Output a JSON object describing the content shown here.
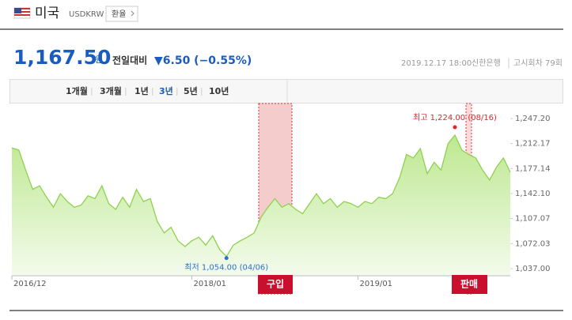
{
  "header": {
    "country": "미국",
    "code": "USDKRW",
    "button": "환율"
  },
  "quote": {
    "price": "1,167.50",
    "unit": "원",
    "change_label": "전일대비",
    "change": "▼6.50 (−0.55%)",
    "datetime": "2019.12.17 18:00",
    "bank": "신한은행",
    "round": "고시회차 79회"
  },
  "tabs": [
    "1개월",
    "3개월",
    "1년",
    "3년",
    "5년",
    "10년"
  ],
  "selected_tab": 3,
  "chart_data": {
    "type": "area",
    "color": "#8fd14f",
    "values": [
      1206,
      1203,
      1175,
      1148,
      1153,
      1137,
      1123,
      1142,
      1131,
      1123,
      1126,
      1139,
      1135,
      1153,
      1128,
      1120,
      1137,
      1123,
      1148,
      1131,
      1135,
      1103,
      1087,
      1095,
      1076,
      1068,
      1076,
      1081,
      1070,
      1083,
      1064,
      1054,
      1070,
      1076,
      1081,
      1087,
      1109,
      1123,
      1135,
      1123,
      1128,
      1120,
      1114,
      1128,
      1142,
      1128,
      1135,
      1123,
      1131,
      1128,
      1123,
      1131,
      1128,
      1137,
      1135,
      1142,
      1164,
      1197,
      1192,
      1205,
      1170,
      1186,
      1175,
      1212,
      1224,
      1203,
      1197,
      1192,
      1175,
      1161,
      1179,
      1192,
      1172
    ],
    "xlim": [
      0,
      72
    ],
    "xticks": [
      {
        "value": 0,
        "label": "2016/12"
      },
      {
        "value": 26,
        "label": "2018/01"
      },
      {
        "value": 50,
        "label": "2019/01"
      }
    ],
    "ylim": [
      1037,
      1247.2
    ],
    "yticks": [
      {
        "value": 1247.2,
        "label": "1,247.20"
      },
      {
        "value": 1212.17,
        "label": "1,212.17"
      },
      {
        "value": 1177.14,
        "label": "1,177.14"
      },
      {
        "value": 1142.1,
        "label": "1,142.10"
      },
      {
        "value": 1107.07,
        "label": "1,107.07"
      },
      {
        "value": 1072.03,
        "label": "1,072.03"
      },
      {
        "value": 1037,
        "label": "1,037.00"
      }
    ],
    "grid": false,
    "max_point": {
      "index": 64,
      "label": "최고 1,224.00 (08/16)",
      "color": "#e8202a"
    },
    "min_point": {
      "index": 31,
      "label": "최저 1,054.00 (04/06)",
      "color": "#2a6fd6"
    },
    "buy_label": "구입",
    "sell_label": "판매"
  }
}
